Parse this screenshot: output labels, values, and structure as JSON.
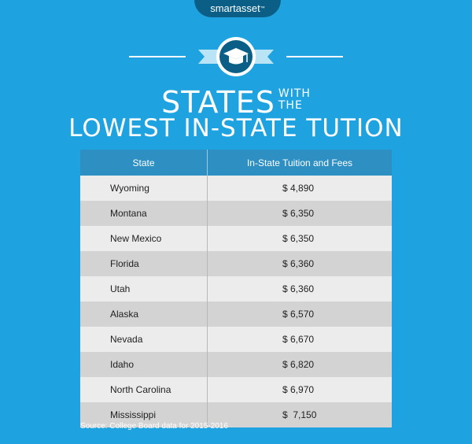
{
  "brand": {
    "name": "smartasset",
    "tm": "™"
  },
  "title": {
    "line1_big": "STATES",
    "line1_small_top": "WITH",
    "line1_small_bottom": "THE",
    "line2": "LOWEST IN-STATE TUTION"
  },
  "table": {
    "headers": [
      "State",
      "In-State Tuition and Fees"
    ],
    "rows": [
      {
        "state": "Wyoming",
        "fee": "$ 4,890"
      },
      {
        "state": "Montana",
        "fee": "$ 6,350"
      },
      {
        "state": "New Mexico",
        "fee": "$ 6,350"
      },
      {
        "state": "Florida",
        "fee": "$ 6,360"
      },
      {
        "state": "Utah",
        "fee": "$ 6,360"
      },
      {
        "state": "Alaska",
        "fee": "$ 6,570"
      },
      {
        "state": "Nevada",
        "fee": "$ 6,670"
      },
      {
        "state": "Idaho",
        "fee": "$ 6,820"
      },
      {
        "state": "North Carolina",
        "fee": "$ 6,970"
      },
      {
        "state": "Mississippi",
        "fee": "$  7,150"
      }
    ]
  },
  "source": "Source: College Board data for 2015-2016",
  "colors": {
    "background": "#1fa3e0",
    "header": "#2d8fc2",
    "badge": "#0b5f86",
    "ribbon": "#b9e4f5"
  },
  "icons": {
    "emblem": "graduation-cap-icon"
  }
}
